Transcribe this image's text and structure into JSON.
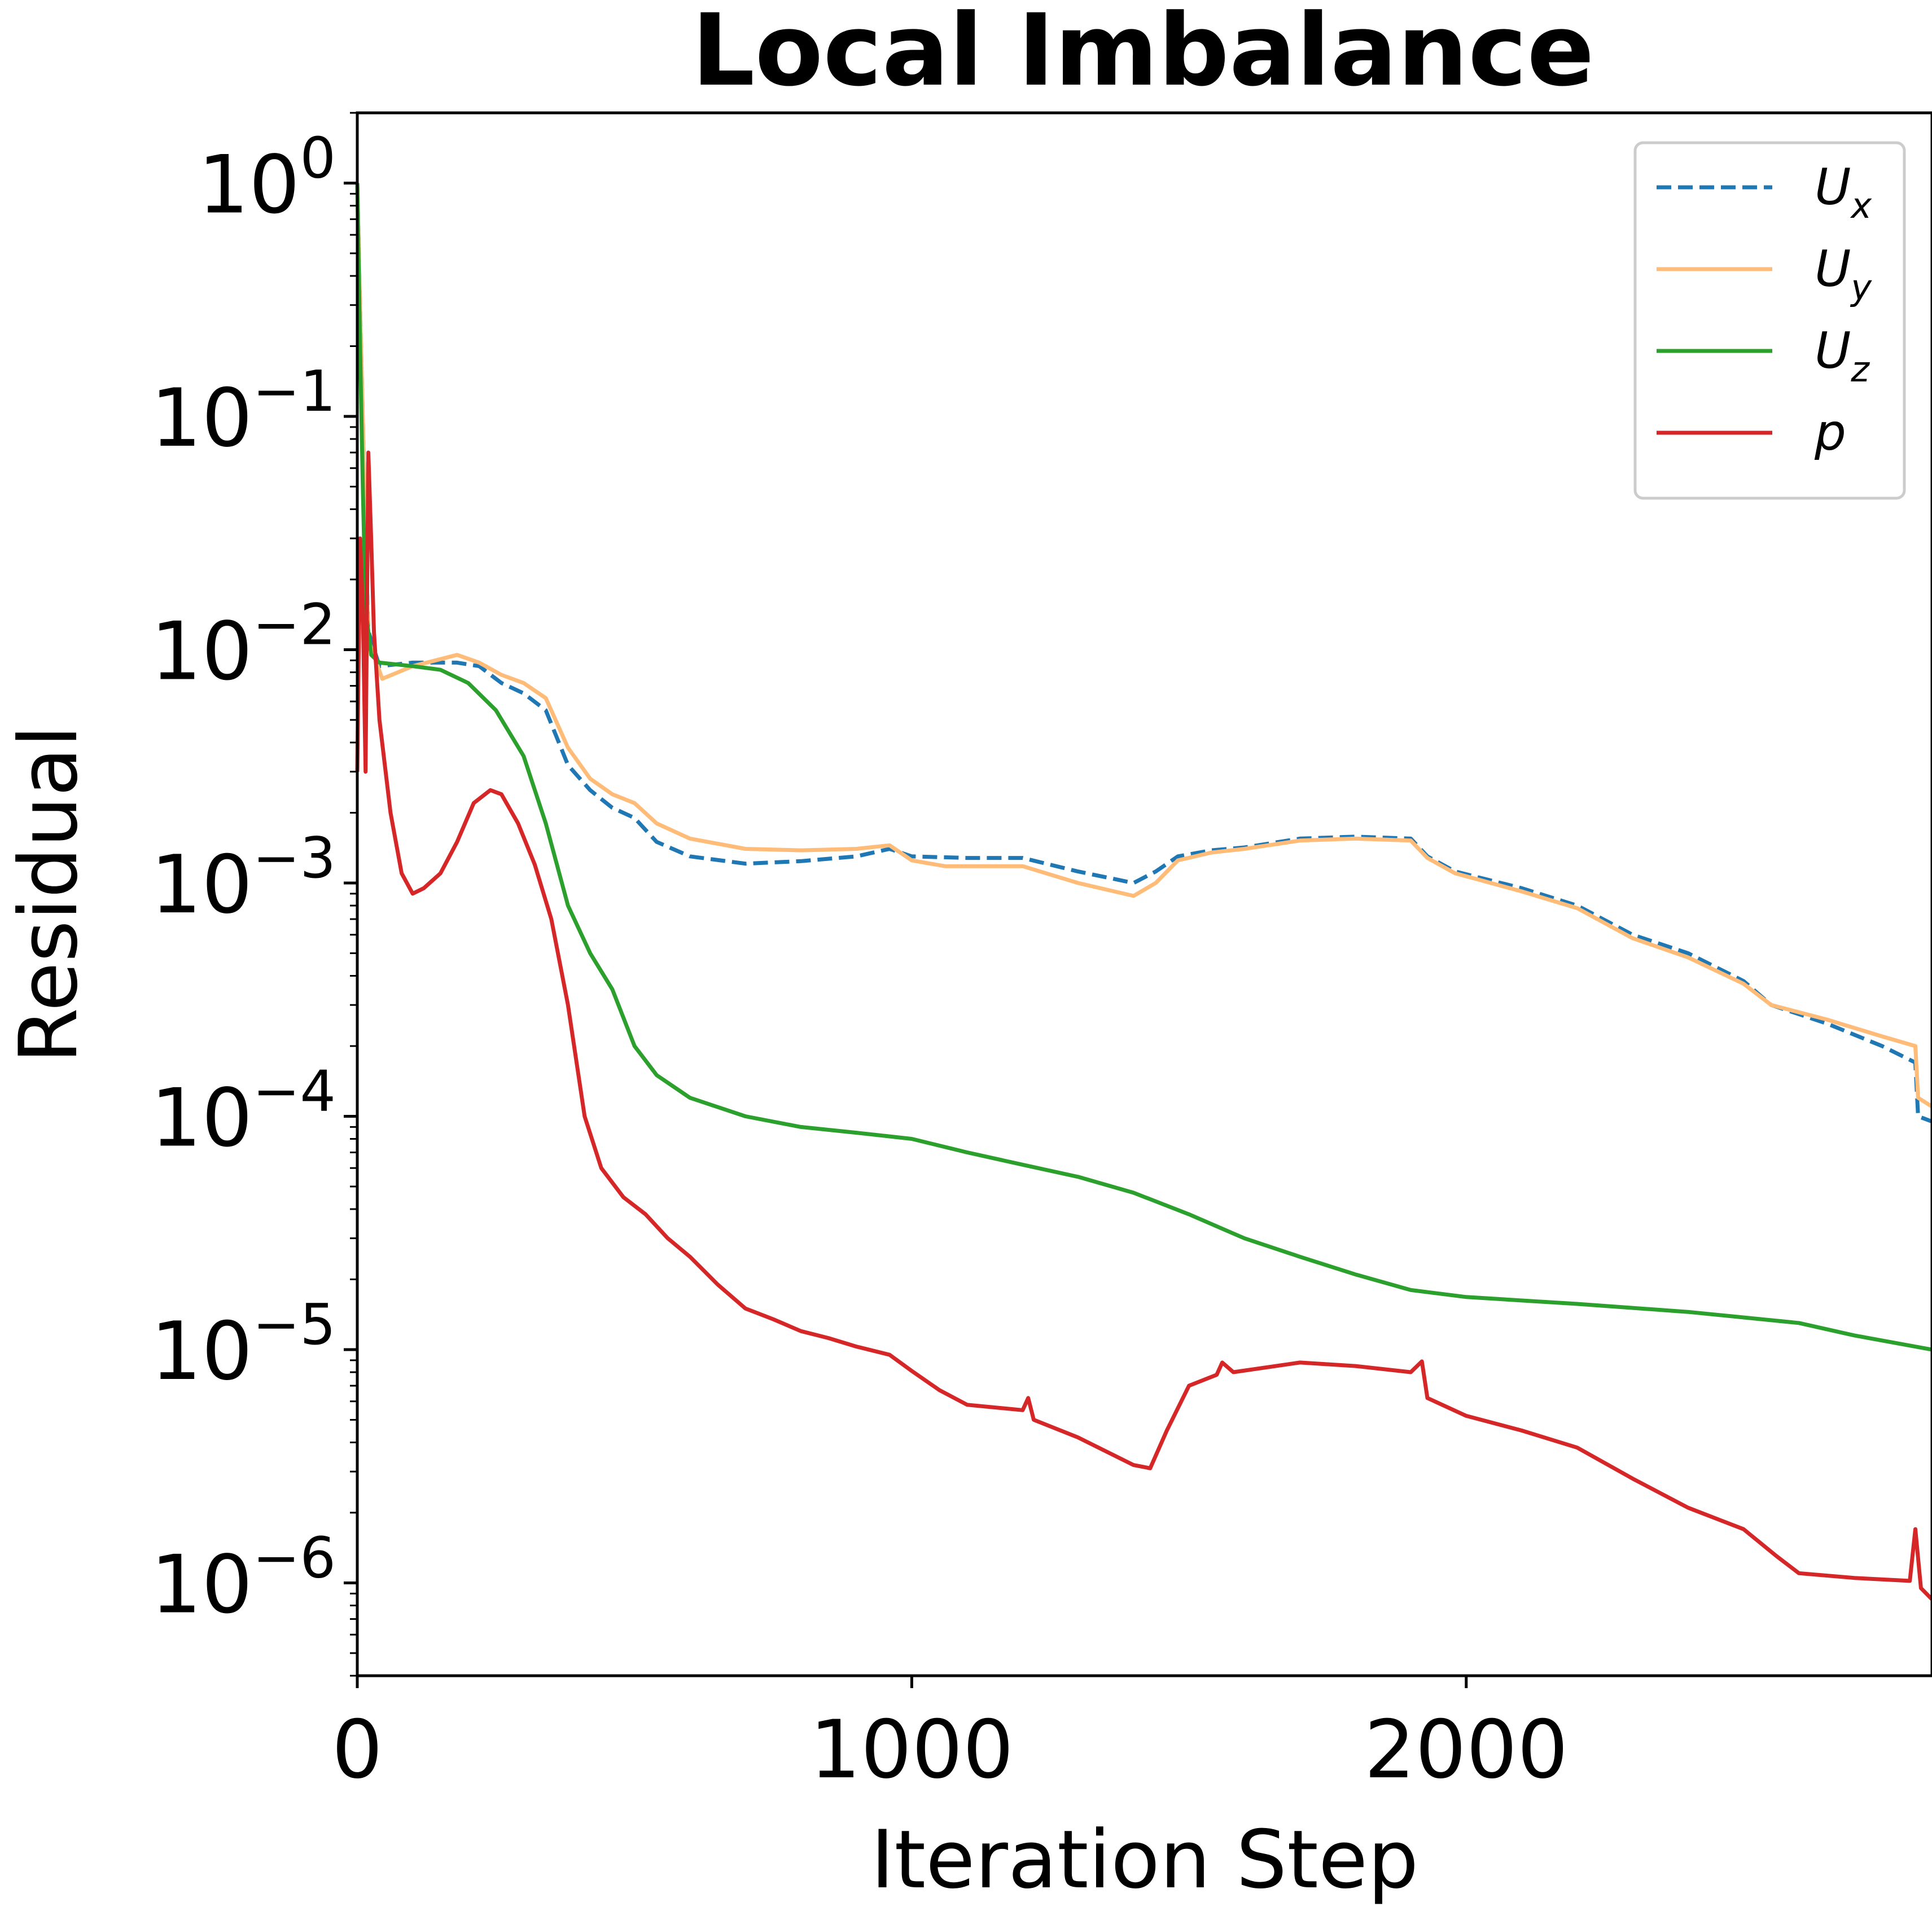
{
  "chart_data": {
    "type": "line",
    "title": "Local Imbalance",
    "xlabel": "Iteration Step",
    "ylabel": "Residual",
    "xlim": [
      0,
      2840
    ],
    "ylim": [
      4e-07,
      2.0
    ],
    "yscale": "log",
    "x_ticks": [
      {
        "value": 0,
        "label": "0"
      },
      {
        "value": 1000,
        "label": "1000"
      },
      {
        "value": 2000,
        "label": "2000"
      }
    ],
    "y_ticks": [
      {
        "value": 1,
        "base": "10",
        "exp": "0"
      },
      {
        "value": 0.1,
        "base": "10",
        "exp": "−1"
      },
      {
        "value": 0.01,
        "base": "10",
        "exp": "−2"
      },
      {
        "value": 0.001,
        "base": "10",
        "exp": "−3"
      },
      {
        "value": 0.0001,
        "base": "10",
        "exp": "−4"
      },
      {
        "value": 1e-05,
        "base": "10",
        "exp": "−5"
      },
      {
        "value": 1e-06,
        "base": "10",
        "exp": "−6"
      }
    ],
    "grid": false,
    "legend": {
      "position": "top-right"
    },
    "series": [
      {
        "name": "U",
        "subscript": "x",
        "color": "#1f77b4",
        "dash": "dashed",
        "points": [
          [
            0,
            1.0
          ],
          [
            5,
            0.3
          ],
          [
            10,
            0.1
          ],
          [
            15,
            0.03
          ],
          [
            20,
            0.012
          ],
          [
            40,
            0.0085
          ],
          [
            100,
            0.0088
          ],
          [
            180,
            0.0088
          ],
          [
            220,
            0.0085
          ],
          [
            260,
            0.0072
          ],
          [
            300,
            0.0065
          ],
          [
            340,
            0.0055
          ],
          [
            380,
            0.0032
          ],
          [
            420,
            0.0025
          ],
          [
            460,
            0.0021
          ],
          [
            500,
            0.0019
          ],
          [
            540,
            0.0015
          ],
          [
            600,
            0.0013
          ],
          [
            700,
            0.00121
          ],
          [
            800,
            0.00124
          ],
          [
            900,
            0.0013
          ],
          [
            960,
            0.0014
          ],
          [
            1000,
            0.0013
          ],
          [
            1100,
            0.00128
          ],
          [
            1200,
            0.00128
          ],
          [
            1300,
            0.00112
          ],
          [
            1400,
            0.001
          ],
          [
            1440,
            0.00112
          ],
          [
            1480,
            0.0013
          ],
          [
            1540,
            0.00138
          ],
          [
            1600,
            0.00142
          ],
          [
            1700,
            0.00155
          ],
          [
            1800,
            0.00158
          ],
          [
            1900,
            0.00155
          ],
          [
            1930,
            0.0013
          ],
          [
            1980,
            0.00112
          ],
          [
            2100,
            0.00095
          ],
          [
            2200,
            0.0008
          ],
          [
            2300,
            0.0006
          ],
          [
            2400,
            0.0005
          ],
          [
            2500,
            0.00038
          ],
          [
            2550,
            0.0003
          ],
          [
            2650,
            0.00025
          ],
          [
            2750,
            0.0002
          ],
          [
            2810,
            0.00017
          ],
          [
            2815,
            0.0001
          ],
          [
            2840,
            9.5e-05
          ]
        ]
      },
      {
        "name": "U",
        "subscript": "y",
        "color": "#ffbb78",
        "dash": "solid",
        "points": [
          [
            0,
            1.0
          ],
          [
            5,
            0.3
          ],
          [
            10,
            0.1
          ],
          [
            15,
            0.03
          ],
          [
            20,
            0.011
          ],
          [
            45,
            0.0075
          ],
          [
            100,
            0.0085
          ],
          [
            180,
            0.0095
          ],
          [
            220,
            0.0088
          ],
          [
            260,
            0.0078
          ],
          [
            300,
            0.0072
          ],
          [
            340,
            0.0062
          ],
          [
            380,
            0.0038
          ],
          [
            420,
            0.0028
          ],
          [
            460,
            0.0024
          ],
          [
            500,
            0.0022
          ],
          [
            540,
            0.0018
          ],
          [
            600,
            0.00155
          ],
          [
            700,
            0.0014
          ],
          [
            800,
            0.00138
          ],
          [
            900,
            0.0014
          ],
          [
            960,
            0.00145
          ],
          [
            1000,
            0.00125
          ],
          [
            1060,
            0.00118
          ],
          [
            1100,
            0.00118
          ],
          [
            1200,
            0.00118
          ],
          [
            1300,
            0.001
          ],
          [
            1400,
            0.00088
          ],
          [
            1440,
            0.001
          ],
          [
            1480,
            0.00125
          ],
          [
            1540,
            0.00135
          ],
          [
            1600,
            0.0014
          ],
          [
            1700,
            0.00152
          ],
          [
            1800,
            0.00155
          ],
          [
            1900,
            0.00152
          ],
          [
            1930,
            0.00128
          ],
          [
            1980,
            0.0011
          ],
          [
            2100,
            0.00092
          ],
          [
            2200,
            0.00078
          ],
          [
            2300,
            0.00058
          ],
          [
            2400,
            0.00048
          ],
          [
            2500,
            0.00037
          ],
          [
            2550,
            0.0003
          ],
          [
            2650,
            0.00026
          ],
          [
            2750,
            0.00022
          ],
          [
            2810,
            0.0002
          ],
          [
            2815,
            0.00012
          ],
          [
            2840,
            0.00011
          ]
        ]
      },
      {
        "name": "U",
        "subscript": "z",
        "color": "#2ca02c",
        "dash": "solid",
        "points": [
          [
            0,
            1.0
          ],
          [
            5,
            0.2
          ],
          [
            10,
            0.05
          ],
          [
            15,
            0.015
          ],
          [
            25,
            0.0095
          ],
          [
            40,
            0.0088
          ],
          [
            100,
            0.0085
          ],
          [
            150,
            0.0082
          ],
          [
            200,
            0.0072
          ],
          [
            250,
            0.0055
          ],
          [
            300,
            0.0035
          ],
          [
            340,
            0.0018
          ],
          [
            380,
            0.0008
          ],
          [
            420,
            0.0005
          ],
          [
            460,
            0.00035
          ],
          [
            500,
            0.0002
          ],
          [
            540,
            0.00015
          ],
          [
            600,
            0.00012
          ],
          [
            700,
            0.0001
          ],
          [
            800,
            9e-05
          ],
          [
            900,
            8.5e-05
          ],
          [
            960,
            8.2e-05
          ],
          [
            1000,
            8e-05
          ],
          [
            1100,
            7e-05
          ],
          [
            1200,
            6.2e-05
          ],
          [
            1300,
            5.5e-05
          ],
          [
            1400,
            4.7e-05
          ],
          [
            1500,
            3.8e-05
          ],
          [
            1600,
            3e-05
          ],
          [
            1700,
            2.5e-05
          ],
          [
            1800,
            2.1e-05
          ],
          [
            1900,
            1.8e-05
          ],
          [
            2000,
            1.68e-05
          ],
          [
            2200,
            1.57e-05
          ],
          [
            2400,
            1.45e-05
          ],
          [
            2600,
            1.3e-05
          ],
          [
            2700,
            1.15e-05
          ],
          [
            2840,
            1e-05
          ]
        ]
      },
      {
        "name": "p",
        "subscript": "",
        "color": "#d62728",
        "dash": "solid",
        "points": [
          [
            0,
            0.003
          ],
          [
            5,
            0.03
          ],
          [
            10,
            0.015
          ],
          [
            15,
            0.003
          ],
          [
            20,
            0.07
          ],
          [
            25,
            0.03
          ],
          [
            30,
            0.012
          ],
          [
            40,
            0.005
          ],
          [
            60,
            0.002
          ],
          [
            80,
            0.0011
          ],
          [
            100,
            0.0009
          ],
          [
            120,
            0.00095
          ],
          [
            150,
            0.0011
          ],
          [
            180,
            0.0015
          ],
          [
            210,
            0.0022
          ],
          [
            240,
            0.0025
          ],
          [
            260,
            0.0024
          ],
          [
            290,
            0.0018
          ],
          [
            320,
            0.0012
          ],
          [
            350,
            0.0007
          ],
          [
            380,
            0.0003
          ],
          [
            410,
            0.0001
          ],
          [
            440,
            6e-05
          ],
          [
            480,
            4.5e-05
          ],
          [
            520,
            3.8e-05
          ],
          [
            560,
            3e-05
          ],
          [
            600,
            2.5e-05
          ],
          [
            650,
            1.9e-05
          ],
          [
            700,
            1.5e-05
          ],
          [
            750,
            1.35e-05
          ],
          [
            800,
            1.2e-05
          ],
          [
            850,
            1.12e-05
          ],
          [
            900,
            1.03e-05
          ],
          [
            960,
            9.5e-06
          ],
          [
            1000,
            8.1e-06
          ],
          [
            1050,
            6.7e-06
          ],
          [
            1100,
            5.8e-06
          ],
          [
            1200,
            5.5e-06
          ],
          [
            1210,
            6.2e-06
          ],
          [
            1220,
            5e-06
          ],
          [
            1300,
            4.2e-06
          ],
          [
            1400,
            3.2e-06
          ],
          [
            1430,
            3.1e-06
          ],
          [
            1460,
            4.5e-06
          ],
          [
            1500,
            7e-06
          ],
          [
            1550,
            7.8e-06
          ],
          [
            1560,
            8.8e-06
          ],
          [
            1580,
            8e-06
          ],
          [
            1700,
            8.8e-06
          ],
          [
            1800,
            8.5e-06
          ],
          [
            1900,
            8e-06
          ],
          [
            1920,
            8.9e-06
          ],
          [
            1930,
            6.2e-06
          ],
          [
            2000,
            5.2e-06
          ],
          [
            2100,
            4.5e-06
          ],
          [
            2200,
            3.8e-06
          ],
          [
            2300,
            2.8e-06
          ],
          [
            2400,
            2.1e-06
          ],
          [
            2500,
            1.7e-06
          ],
          [
            2560,
            1.3e-06
          ],
          [
            2600,
            1.1e-06
          ],
          [
            2700,
            1.05e-06
          ],
          [
            2800,
            1.02e-06
          ],
          [
            2810,
            1.7e-06
          ],
          [
            2820,
            9.5e-07
          ],
          [
            2840,
            8.5e-07
          ]
        ]
      }
    ]
  }
}
